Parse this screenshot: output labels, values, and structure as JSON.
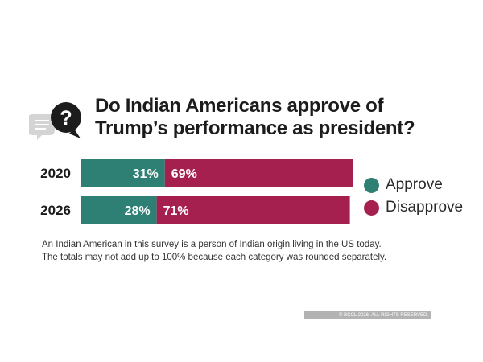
{
  "chart_data": {
    "type": "bar",
    "orientation": "horizontal",
    "stacked": true,
    "title": "Do Indian Americans approve of Trump’s performance as president?",
    "categories": [
      "2020",
      "2026"
    ],
    "series": [
      {
        "name": "Approve",
        "values": [
          31,
          28
        ],
        "labels": [
          "31%",
          "28%"
        ],
        "color": "#2e7f74"
      },
      {
        "name": "Disapprove",
        "values": [
          69,
          71
        ],
        "labels": [
          "69%",
          "71%"
        ],
        "color": "#a6204f"
      }
    ],
    "xlim": [
      0,
      100
    ],
    "grid": false,
    "legend_position": "right"
  },
  "title_icon": "question-speech-bubble-icon",
  "note_lines": [
    "An Indian American in this survey is a person of Indian origin living in the US today.",
    "The totals may not add up to 100% because each category was rounded separately."
  ],
  "copyright": "© BCCL 2026. ALL RIGHTS RESERVED."
}
